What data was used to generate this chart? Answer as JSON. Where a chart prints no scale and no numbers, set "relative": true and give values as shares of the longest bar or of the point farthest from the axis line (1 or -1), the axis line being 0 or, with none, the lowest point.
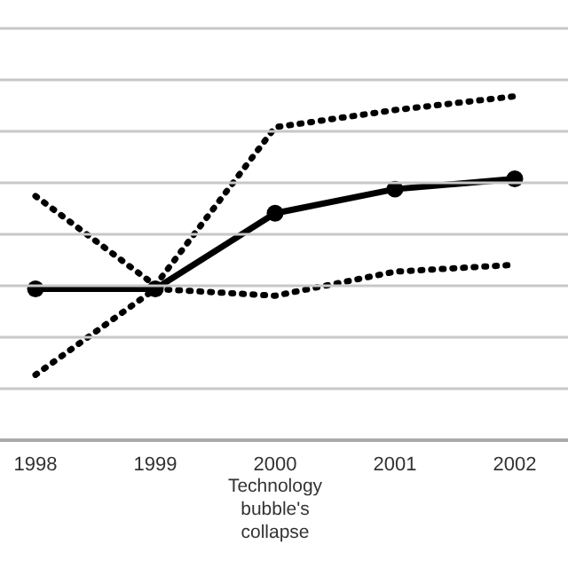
{
  "chart_data": {
    "type": "line",
    "relative": true,
    "grid": "y",
    "categories": [
      "1998",
      "1999",
      "2000",
      "2001",
      "2002"
    ],
    "annotations": [
      "Technology bubble's collapse"
    ],
    "series": [
      {
        "color": "#000000",
        "line_style": "dotted",
        "marker": "none",
        "values": [
          0.71,
          0.45,
          0.91,
          0.96,
          1
        ]
      },
      {
        "color": "#000000",
        "line_style": "solid",
        "marker": "circle",
        "values": [
          0.44,
          0.44,
          0.66,
          0.73,
          0.76
        ]
      },
      {
        "color": "#000000",
        "line_style": "dotted",
        "marker": "none",
        "values": [
          0.19,
          0.44,
          0.42,
          0.49,
          0.51
        ]
      }
    ]
  }
}
